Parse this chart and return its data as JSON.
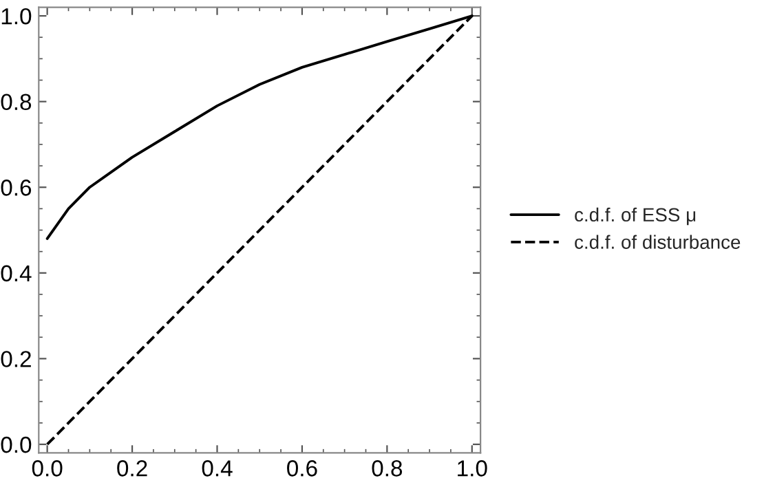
{
  "chart_data": {
    "type": "line",
    "xlim": [
      -0.02,
      1.02
    ],
    "ylim": [
      -0.02,
      1.02
    ],
    "xticks": [
      {
        "value": 0,
        "label": "0.0"
      },
      {
        "value": 0.2,
        "label": "0.2"
      },
      {
        "value": 0.4,
        "label": "0.4"
      },
      {
        "value": 0.6,
        "label": "0.6"
      },
      {
        "value": 0.8,
        "label": "0.8"
      },
      {
        "value": 1,
        "label": "1.0"
      }
    ],
    "yticks": [
      {
        "value": 0,
        "label": "0.0"
      },
      {
        "value": 0.2,
        "label": "0.2"
      },
      {
        "value": 0.4,
        "label": "0.4"
      },
      {
        "value": 0.6,
        "label": "0.6"
      },
      {
        "value": 0.8,
        "label": "0.8"
      },
      {
        "value": 1,
        "label": "1.0"
      }
    ],
    "x": [
      0,
      0.05,
      0.1,
      0.2,
      0.3,
      0.4,
      0.5,
      0.6,
      0.7,
      0.8,
      0.9,
      1
    ],
    "series": [
      {
        "name": "c.d.f. of ESS μ",
        "color": "#000000",
        "line_style": "solid",
        "values": [
          0.48,
          0.55,
          0.6,
          0.67,
          0.73,
          0.79,
          0.84,
          0.88,
          0.91,
          0.94,
          0.97,
          1.0
        ]
      },
      {
        "name": "c.d.f. of disturbance",
        "color": "#000000",
        "line_style": "dashed",
        "x": [
          0,
          1
        ],
        "values": [
          0,
          1
        ]
      }
    ],
    "legend": "right",
    "grid": false,
    "marker": "none"
  }
}
